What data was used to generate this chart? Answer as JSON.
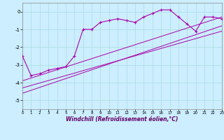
{
  "xlabel": "Windchill (Refroidissement éolien,°C)",
  "ylabel": "",
  "bg_color": "#cceeff",
  "line_color": "#aa00aa",
  "xlim": [
    0,
    23
  ],
  "ylim": [
    -5.5,
    0.5
  ],
  "yticks": [
    0,
    -1,
    -2,
    -3,
    -4,
    -5
  ],
  "xticks": [
    0,
    1,
    2,
    3,
    4,
    5,
    6,
    7,
    8,
    9,
    10,
    11,
    12,
    13,
    14,
    15,
    16,
    17,
    18,
    19,
    20,
    21,
    22,
    23
  ],
  "series1_x": [
    0,
    1,
    2,
    3,
    4,
    5,
    6,
    7,
    8,
    9,
    10,
    11,
    12,
    13,
    14,
    15,
    16,
    17,
    18,
    19,
    20,
    21,
    22,
    23
  ],
  "series1_y": [
    -2.5,
    -3.6,
    -3.5,
    -3.3,
    -3.2,
    -3.1,
    -2.5,
    -1.0,
    -1.0,
    -0.6,
    -0.5,
    -0.4,
    -0.5,
    -0.6,
    -0.3,
    -0.1,
    0.1,
    0.1,
    -0.3,
    -0.7,
    -1.1,
    -0.3,
    -0.3,
    -0.4
  ],
  "series3_x": [
    0,
    23
  ],
  "series3_y": [
    -4.3,
    -1.1
  ],
  "series4_x": [
    0,
    23
  ],
  "series4_y": [
    -4.6,
    -0.8
  ],
  "series5_x": [
    0,
    23
  ],
  "series5_y": [
    -3.9,
    -0.3
  ]
}
